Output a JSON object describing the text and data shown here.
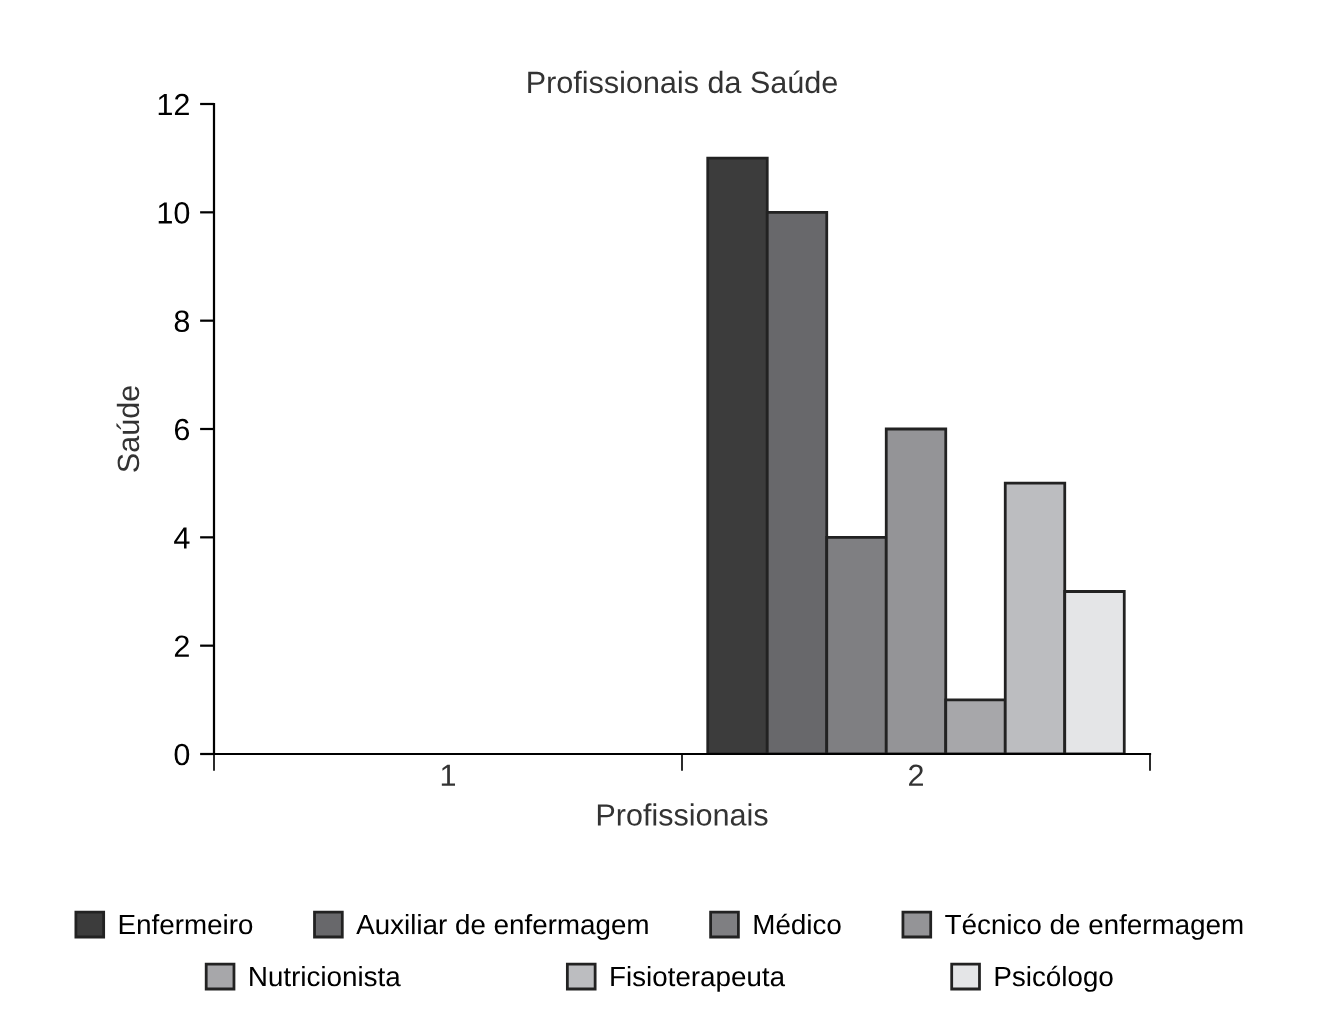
{
  "chart_data": {
    "type": "bar",
    "title": "Profissionais da Saúde",
    "xlabel": "Profissionais",
    "ylabel": "Saúde",
    "categories": [
      "1",
      "2"
    ],
    "series": [
      {
        "name": "Enfermeiro",
        "color": "#3c3c3c",
        "values": [
          null,
          11
        ]
      },
      {
        "name": "Auxiliar de enfermagem",
        "color": "#68686b",
        "values": [
          null,
          10
        ]
      },
      {
        "name": "Médico",
        "color": "#7f7f82",
        "values": [
          null,
          4
        ]
      },
      {
        "name": "Técnico de enfermagem",
        "color": "#949497",
        "values": [
          null,
          6
        ]
      },
      {
        "name": "Nutricionista",
        "color": "#a7a7aa",
        "values": [
          null,
          1
        ]
      },
      {
        "name": "Fisioterapeuta",
        "color": "#bcbdc0",
        "values": [
          null,
          5
        ]
      },
      {
        "name": "Psicólogo",
        "color": "#e4e5e7",
        "values": [
          null,
          3
        ]
      }
    ],
    "ylim": [
      0,
      12
    ],
    "yticks": [
      0,
      2,
      4,
      6,
      8,
      10,
      12
    ],
    "grid": false,
    "legend": "bottom"
  }
}
